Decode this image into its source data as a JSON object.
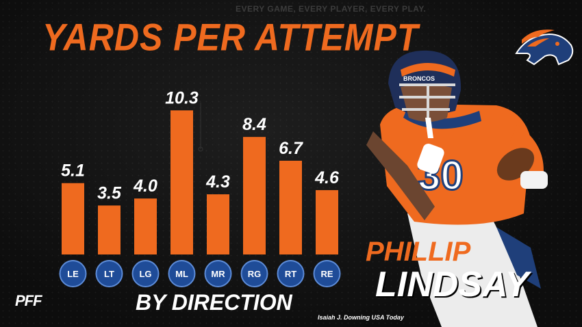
{
  "header": {
    "tagline": "EVERY GAME, EVERY PLAYER, EVERY PLAY.",
    "title": "YARDS PER ATTEMPT",
    "subtitle": "BY DIRECTION"
  },
  "player": {
    "first_name": "PHILLIP",
    "last_name": "LINDSAY",
    "jersey_number": "30",
    "helmet_text": "BRONCOS"
  },
  "credit": "Isaiah J. Downing USA Today",
  "brand": "PFF",
  "colors": {
    "bar": "#ef6a1f",
    "circle": "#1f4c98",
    "background": "#111111"
  },
  "icons": [
    "broncos-logo-icon",
    "pff-logo-icon"
  ],
  "chart_data": {
    "type": "bar",
    "categories": [
      "LE",
      "LT",
      "LG",
      "ML",
      "MR",
      "RG",
      "RT",
      "RE"
    ],
    "values": [
      5.1,
      3.5,
      4.0,
      10.3,
      4.3,
      8.4,
      6.7,
      4.6
    ],
    "value_labels": [
      "5.1",
      "3.5",
      "4.0",
      "10.3",
      "4.3",
      "8.4",
      "6.7",
      "4.6"
    ],
    "title": "YARDS PER ATTEMPT",
    "xlabel": "BY DIRECTION",
    "ylabel": "",
    "ylim": [
      0,
      11
    ],
    "grid": false
  }
}
